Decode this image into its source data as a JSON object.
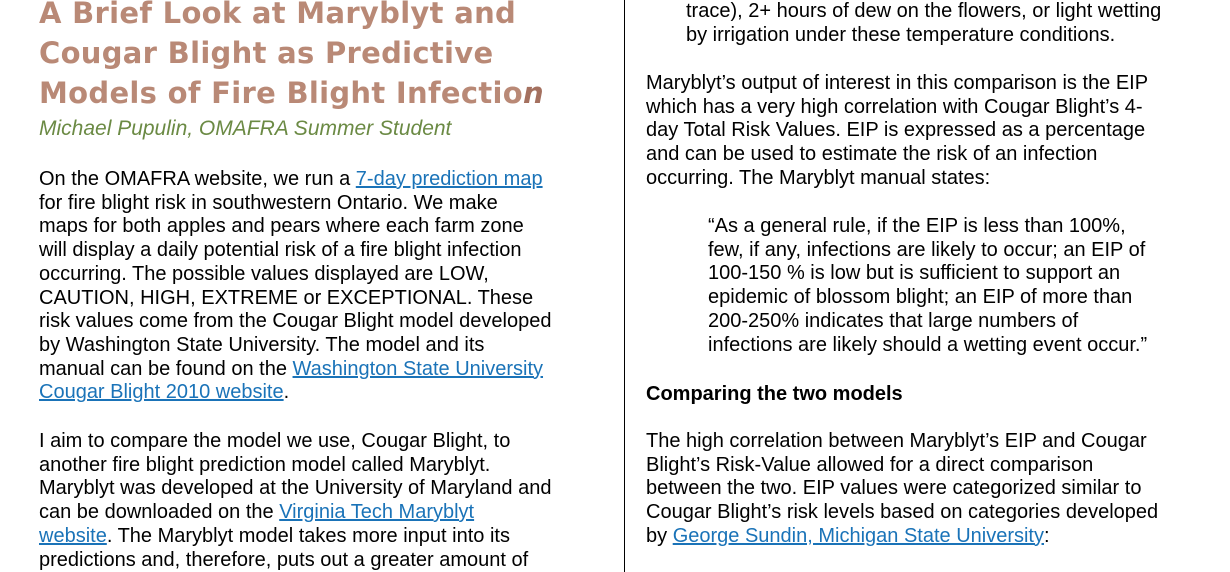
{
  "title": {
    "line1": "A Brief Look at Maryblyt and",
    "line2": "Cougar Blight as Predictive",
    "line3_main": "Models of Fire Blight Infectio",
    "line3_italic": "n"
  },
  "author": "Michael Pupulin, OMAFRA Summer Student",
  "left": {
    "p1": {
      "l1_pre": "On the OMAFRA website, we run a ",
      "l1_link": "7-day prediction map",
      "l2": "for fire blight risk in southwestern Ontario. We make",
      "l3": "maps for both apples and pears where each farm zone",
      "l4": "will display a daily potential risk of a fire blight infection",
      "l5": "occurring. The possible values displayed are LOW,",
      "l6": "CAUTION, HIGH, EXTREME or EXCEPTIONAL. These",
      "l7": "risk values come from the Cougar Blight model developed",
      "l8": "by Washington State University. The model and its",
      "l9_pre": "manual can be found on the ",
      "l9_link": "Washington State University",
      "l10_link": "Cougar Blight 2010 website",
      "l10_post": "."
    },
    "p2": {
      "l1": "I aim to compare the model we use, Cougar Blight, to",
      "l2": "another fire blight prediction model called Maryblyt.",
      "l3": "Maryblyt was developed at the University of Maryland and",
      "l4_pre": "can be downloaded on the ",
      "l4_link": "Virginia Tech Maryblyt",
      "l5_link": "website",
      "l5_post": ". The Maryblyt model takes more input into its",
      "l6": "predictions and, therefore, puts out a greater amount of"
    }
  },
  "right": {
    "cont": {
      "l1": "trace), 2+ hours of dew on the flowers, or light wetting",
      "l2": "by irrigation under these temperature conditions."
    },
    "p1": {
      "l1": "Maryblyt’s output of interest in this comparison is the EIP",
      "l2": "which has a very high correlation with Cougar Blight’s 4-",
      "l3": "day Total Risk Values. EIP is expressed as a percentage",
      "l4": "and can be used to estimate the risk of an infection",
      "l5": "occurring.  The Maryblyt manual states:"
    },
    "quote": {
      "l1": "“As a general rule, if the EIP is less than 100%,",
      "l2": "few, if any, infections are likely to occur; an EIP of",
      "l3": "100-150 % is low but is sufficient to support an",
      "l4": "epidemic of blossom blight; an EIP of more than",
      "l5": "200-250% indicates that large numbers of",
      "l6": "infections are likely should a wetting event occur.”"
    },
    "heading": "Comparing the two models",
    "p2": {
      "l1": "The high correlation between Maryblyt’s EIP and Cougar",
      "l2": "Blight’s Risk-Value allowed for a direct comparison",
      "l3": "between the two. EIP values were categorized similar to",
      "l4": "Cougar Blight’s risk levels based on categories developed",
      "l5_pre": "by ",
      "l5_link": "George Sundin, Michigan State University",
      "l5_post": ":"
    }
  },
  "colors": {
    "title": "#b98976",
    "author": "#6b8a44",
    "link": "#1a73b8"
  }
}
